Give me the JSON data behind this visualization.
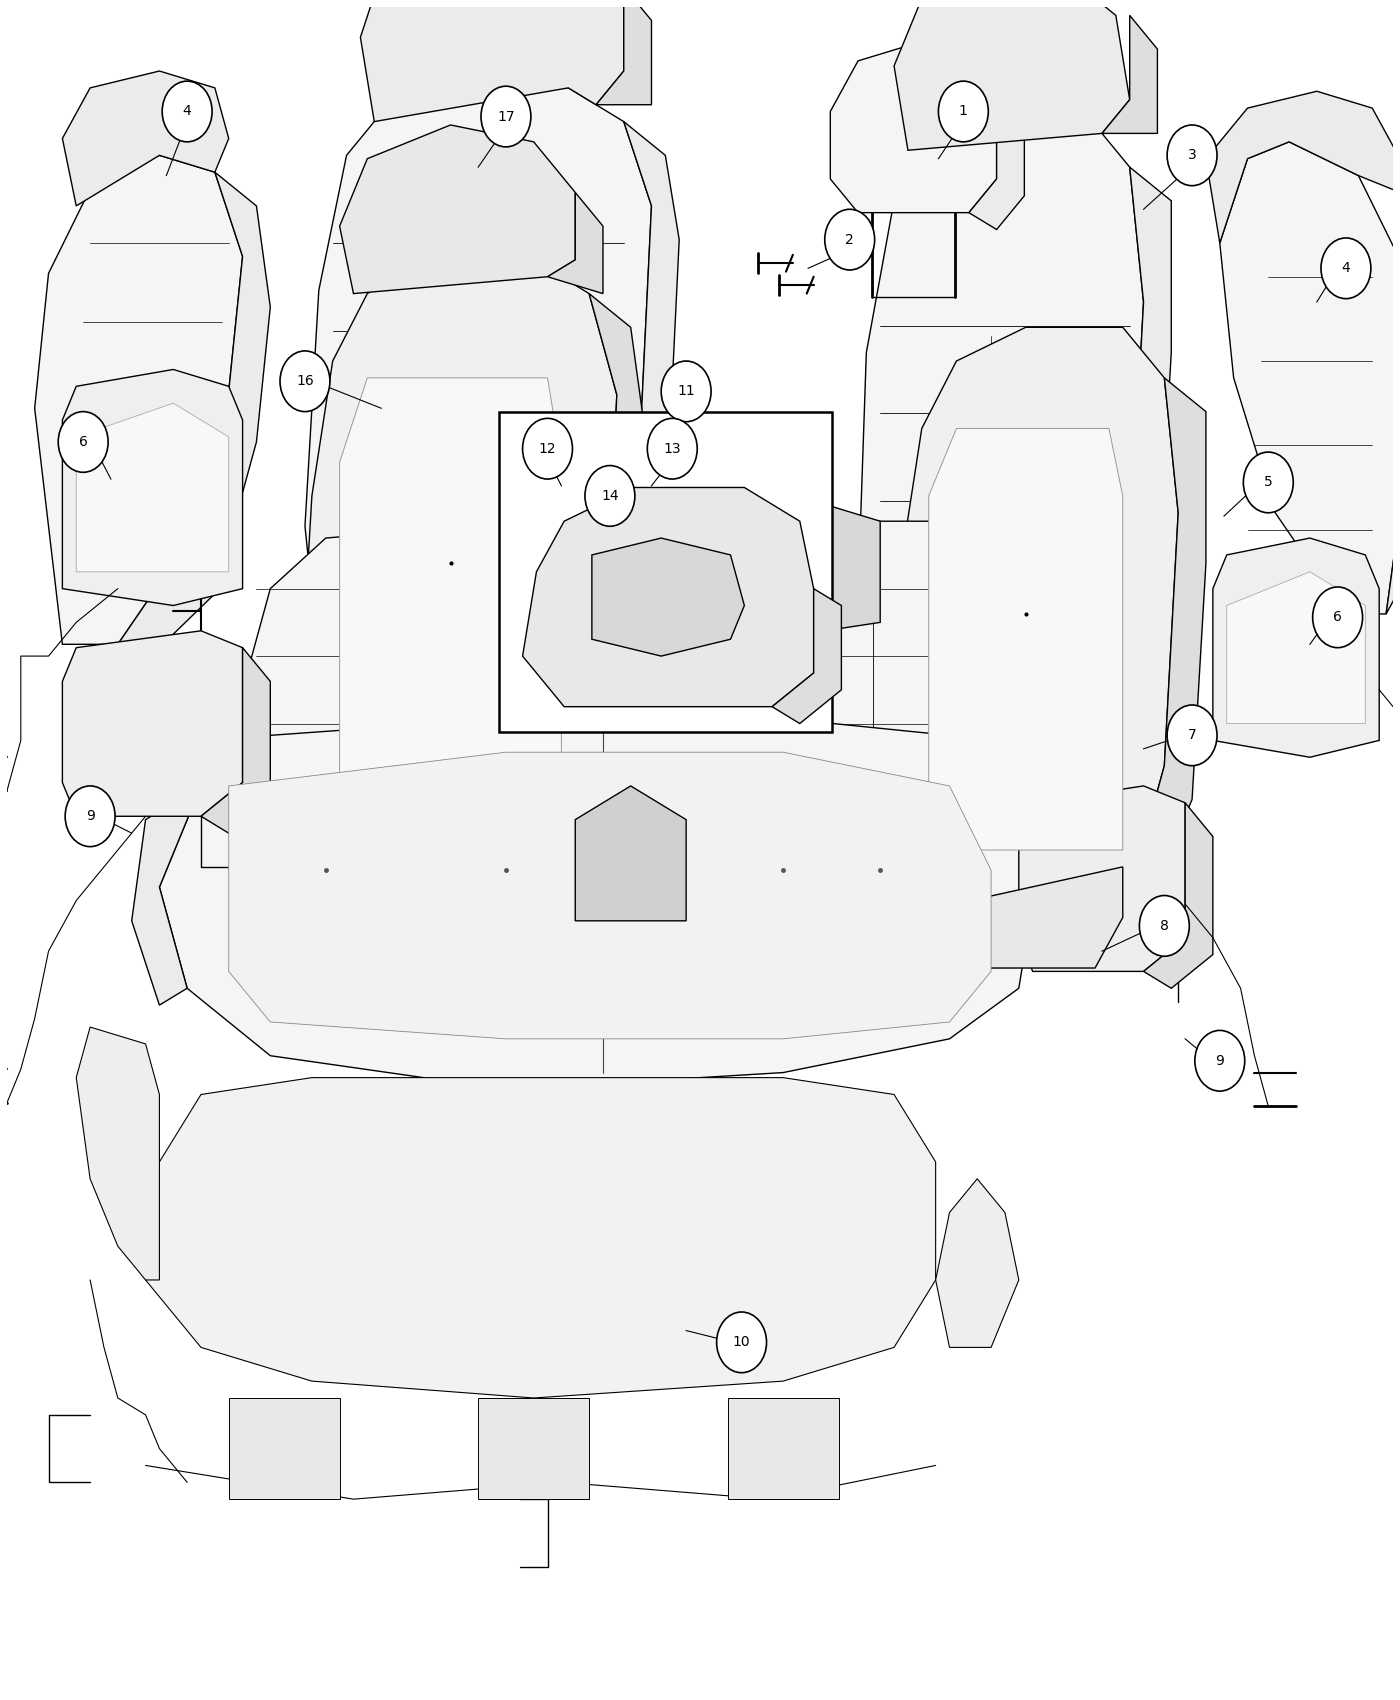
{
  "bg": "#ffffff",
  "lc": "#000000",
  "lw_main": 1.2,
  "lw_thin": 0.6,
  "fc_light": "#f5f5f5",
  "fc_mid": "#ebebeb",
  "fc_dark": "#dedede",
  "callout_r": 0.018,
  "callout_fs": 10,
  "parts_layout": {
    "part1_head_restraint": {
      "ox": 0.595,
      "oy": 0.875
    },
    "part2_screws": {
      "ox": 0.535,
      "oy": 0.835
    },
    "part3_back_right": {
      "ox": 0.62,
      "oy": 0.595
    },
    "part4_bolster_left": {
      "ox": 0.04,
      "oy": 0.62
    },
    "part4_bolster_right": {
      "ox": 0.885,
      "oy": 0.63
    },
    "part5_frame_right": {
      "ox": 0.65,
      "oy": 0.475
    },
    "part6_pad_left": {
      "ox": 0.04,
      "oy": 0.625
    },
    "part6_pad_right": {
      "ox": 0.88,
      "oy": 0.54
    },
    "part7_cushion_top": {
      "ox": 0.18,
      "oy": 0.52
    },
    "part8_cushion_bottom": {
      "ox": 0.12,
      "oy": 0.4
    },
    "part9_harness_left": {
      "ox": 0.04,
      "oy": 0.48
    },
    "part9_harness_right": {
      "ox": 0.72,
      "oy": 0.395
    },
    "part10_cover": {
      "ox": 0.08,
      "oy": 0.18
    },
    "part11_inset": {
      "ox": 0.37,
      "oy": 0.6
    },
    "part16_frame_left": {
      "ox": 0.22,
      "oy": 0.48
    },
    "part17_back_center": {
      "ox": 0.22,
      "oy": 0.61
    }
  }
}
